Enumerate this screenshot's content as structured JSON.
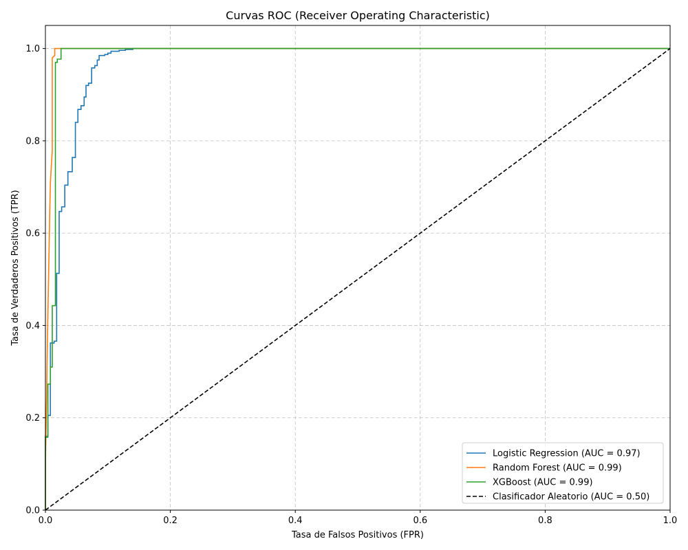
{
  "chart_data": {
    "type": "line",
    "title": "Curvas ROC (Receiver Operating Characteristic)",
    "xlabel": "Tasa de Falsos Positivos (FPR)",
    "ylabel": "Tasa de Verdaderos Positivos (TPR)",
    "xlim": [
      0.0,
      1.0
    ],
    "ylim": [
      0.0,
      1.05
    ],
    "xticks": [
      "0.0",
      "0.2",
      "0.4",
      "0.6",
      "0.8",
      "1.0"
    ],
    "yticks": [
      "0.0",
      "0.2",
      "0.4",
      "0.6",
      "0.8",
      "1.0"
    ],
    "grid": true,
    "legend_position": "lower-right",
    "series": [
      {
        "name": "Logistic Regression (AUC = 0.97)",
        "color": "#1f77b4",
        "style": "solid",
        "x": [
          0.0,
          0.0,
          0.004,
          0.004,
          0.008,
          0.008,
          0.014,
          0.014,
          0.018,
          0.018,
          0.022,
          0.022,
          0.026,
          0.026,
          0.031,
          0.031,
          0.036,
          0.036,
          0.043,
          0.043,
          0.048,
          0.048,
          0.052,
          0.052,
          0.057,
          0.057,
          0.062,
          0.062,
          0.065,
          0.065,
          0.069,
          0.069,
          0.074,
          0.074,
          0.079,
          0.079,
          0.083,
          0.083,
          0.086,
          0.086,
          0.095,
          0.095,
          0.1,
          0.1,
          0.105,
          0.105,
          0.118,
          0.118,
          0.128,
          0.128,
          0.14,
          0.14,
          1.0
        ],
        "y": [
          0.0,
          0.16,
          0.16,
          0.205,
          0.205,
          0.362,
          0.362,
          0.366,
          0.366,
          0.513,
          0.513,
          0.647,
          0.647,
          0.657,
          0.657,
          0.704,
          0.704,
          0.733,
          0.733,
          0.764,
          0.764,
          0.84,
          0.84,
          0.868,
          0.868,
          0.876,
          0.876,
          0.895,
          0.895,
          0.92,
          0.92,
          0.925,
          0.925,
          0.958,
          0.958,
          0.963,
          0.963,
          0.975,
          0.975,
          0.985,
          0.985,
          0.987,
          0.987,
          0.99,
          0.99,
          0.994,
          0.994,
          0.996,
          0.996,
          0.998,
          0.998,
          1.0,
          1.0
        ]
      },
      {
        "name": "Random Forest (AUC = 0.99)",
        "color": "#ff7f0e",
        "style": "solid",
        "x": [
          0.0,
          0.0,
          0.002,
          0.003,
          0.005,
          0.007,
          0.008,
          0.011,
          0.011,
          0.015,
          0.015,
          0.024,
          1.0
        ],
        "y": [
          0.0,
          0.1,
          0.25,
          0.35,
          0.5,
          0.65,
          0.71,
          0.78,
          0.98,
          0.985,
          1.0,
          1.0,
          1.0
        ]
      },
      {
        "name": "XGBoost (AUC = 0.99)",
        "color": "#2ca02c",
        "style": "solid",
        "x": [
          0.0,
          0.0,
          0.004,
          0.004,
          0.008,
          0.008,
          0.011,
          0.011,
          0.016,
          0.016,
          0.019,
          0.019,
          0.025,
          0.025,
          1.0
        ],
        "y": [
          0.0,
          0.158,
          0.158,
          0.273,
          0.273,
          0.31,
          0.31,
          0.443,
          0.443,
          0.97,
          0.97,
          0.977,
          0.977,
          1.0,
          1.0
        ]
      },
      {
        "name": "Clasificador Aleatorio (AUC = 0.50)",
        "color": "#000000",
        "style": "dashed",
        "x": [
          0.0,
          1.0
        ],
        "y": [
          0.0,
          1.0
        ]
      }
    ]
  }
}
